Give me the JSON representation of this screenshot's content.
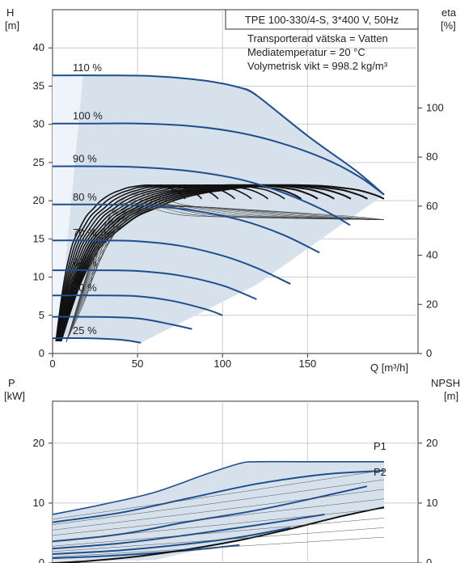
{
  "top_chart": {
    "pump_title": "TPE 100-330/4-S, 3*400 V, 50Hz",
    "info_lines": [
      "Transporterad vätska = Vatten",
      "Mediatemperatur = 20 °C",
      "Volymetrisk vikt = 998.2 kg/m³"
    ],
    "y_left_label": "H",
    "y_left_unit": "[m]",
    "y_right_label": "eta",
    "y_right_unit": "[%]",
    "x_label": "Q [m³/h]"
  },
  "bottom_chart": {
    "y_left_label": "P",
    "y_left_unit": "[kW]",
    "y_right_label": "NPSH",
    "y_right_unit": "[m]",
    "p1_label": "P1",
    "p2_label": "P2"
  },
  "colors": {
    "speed_curve": "#1f4e8c",
    "envelope_fill": "#d6e1ec",
    "light_fill": "#eef4fa",
    "eff_curve": "#111111",
    "p_label": "#2b5d9b",
    "axis": "#333333",
    "grid": "#cccccc"
  },
  "chart_data": [
    {
      "type": "line",
      "title": "TPE 100-330/4-S, 3*400 V, 50Hz",
      "xlabel": "Q [m³/h]",
      "ylabel": "H [m]",
      "y2label": "eta [%]",
      "xlim": [
        0,
        215
      ],
      "ylim": [
        0,
        45
      ],
      "y2lim": [
        0,
        140
      ],
      "xticks": [
        0,
        50,
        100,
        150
      ],
      "yticks": [
        0,
        5,
        10,
        15,
        20,
        25,
        30,
        35,
        40
      ],
      "y2ticks": [
        0,
        20,
        40,
        60,
        80,
        100
      ],
      "grid": true,
      "head_series": [
        {
          "name": "110 %",
          "label_y": 36.4,
          "points": [
            [
              0,
              36.4
            ],
            [
              30,
              36.4
            ],
            [
              60,
              36.3
            ],
            [
              90,
              35.7
            ],
            [
              112,
              34.7
            ],
            [
              120,
              33.8
            ]
          ]
        },
        {
          "name": "100 %",
          "label_y": 30.1,
          "points": [
            [
              0,
              30.1
            ],
            [
              25,
              30.1
            ],
            [
              50,
              30.1
            ],
            [
              80,
              29.8
            ],
            [
              110,
              28.9
            ],
            [
              135,
              27.5
            ],
            [
              160,
              25.5
            ],
            [
              180,
              23.2
            ],
            [
              195,
              20.8
            ]
          ]
        },
        {
          "name": "90 %",
          "label_y": 24.5,
          "points": [
            [
              0,
              24.5
            ],
            [
              25,
              24.5
            ],
            [
              50,
              24.4
            ],
            [
              80,
              23.9
            ],
            [
              110,
              22.8
            ],
            [
              135,
              21.1
            ],
            [
              160,
              18.7
            ],
            [
              175,
              16.8
            ]
          ]
        },
        {
          "name": "80 %",
          "label_y": 19.5,
          "points": [
            [
              0,
              19.5
            ],
            [
              25,
              19.5
            ],
            [
              50,
              19.4
            ],
            [
              80,
              18.8
            ],
            [
              110,
              17.5
            ],
            [
              135,
              15.6
            ],
            [
              157,
              13.2
            ]
          ]
        },
        {
          "name": "70 %",
          "label_y": 14.8,
          "points": [
            [
              0,
              14.8
            ],
            [
              25,
              14.8
            ],
            [
              50,
              14.7
            ],
            [
              75,
              14.1
            ],
            [
              100,
              12.8
            ],
            [
              120,
              11.2
            ],
            [
              140,
              9.1
            ]
          ]
        },
        {
          "name": "60 %",
          "label_y": 10.9,
          "points": [
            [
              0,
              10.9
            ],
            [
              25,
              10.9
            ],
            [
              50,
              10.8
            ],
            [
              75,
              10.2
            ],
            [
              100,
              8.9
            ],
            [
              120,
              7.1
            ]
          ]
        },
        {
          "name": "50 %",
          "label_y": 7.6,
          "points": [
            [
              0,
              7.6
            ],
            [
              25,
              7.6
            ],
            [
              50,
              7.5
            ],
            [
              70,
              6.9
            ],
            [
              90,
              5.8
            ],
            [
              100,
              5.0
            ]
          ]
        },
        {
          "name": "",
          "label_y": 4.8,
          "points": [
            [
              0,
              4.8
            ],
            [
              25,
              4.8
            ],
            [
              50,
              4.6
            ],
            [
              70,
              3.8
            ],
            [
              82,
              3.2
            ]
          ]
        },
        {
          "name": "25 %",
          "label_y": 2.0,
          "points": [
            [
              0,
              2.0
            ],
            [
              20,
              2.0
            ],
            [
              40,
              1.8
            ],
            [
              52,
              1.4
            ]
          ]
        }
      ],
      "efficiency_series": [
        {
          "name": "eta",
          "axis": "y2",
          "points": [
            [
              5,
              5
            ],
            [
              10,
              16
            ],
            [
              15,
              26
            ],
            [
              20,
              34
            ],
            [
              25,
              40
            ],
            [
              30,
              45
            ],
            [
              40,
              51
            ],
            [
              50,
              56
            ],
            [
              60,
              59
            ],
            [
              70,
              62
            ],
            [
              80,
              64
            ],
            [
              90,
              65.5
            ],
            [
              100,
              66.5
            ],
            [
              110,
              67.5
            ],
            [
              120,
              68
            ],
            [
              130,
              68.4
            ],
            [
              140,
              68.6
            ],
            [
              150,
              68.5
            ],
            [
              160,
              68.2
            ],
            [
              170,
              67.5
            ],
            [
              180,
              66.5
            ],
            [
              190,
              64.5
            ],
            [
              195,
              63
            ]
          ]
        }
      ]
    },
    {
      "type": "line",
      "xlabel": "",
      "ylabel": "P [kW]",
      "y2label": "NPSH [m]",
      "xlim": [
        0,
        215
      ],
      "ylim": [
        0,
        27
      ],
      "y2lim": [
        0,
        27
      ],
      "yticks": [
        0,
        10,
        20
      ],
      "y2ticks": [
        0,
        10,
        20
      ],
      "grid": true,
      "series": [
        {
          "name": "P1",
          "points": [
            [
              0,
              8.1
            ],
            [
              30,
              9.8
            ],
            [
              60,
              11.8
            ],
            [
              90,
              14.8
            ],
            [
              110,
              16.6
            ],
            [
              120,
              16.9
            ],
            [
              150,
              16.9
            ],
            [
              195,
              16.9
            ]
          ]
        },
        {
          "name": "P2",
          "points": [
            [
              0,
              6.8
            ],
            [
              40,
              8.4
            ],
            [
              80,
              10.8
            ],
            [
              120,
              13.2
            ],
            [
              160,
              14.8
            ],
            [
              195,
              15.4
            ]
          ]
        },
        {
          "name": "",
          "points": [
            [
              0,
              3.6
            ],
            [
              40,
              4.8
            ],
            [
              80,
              6.9
            ],
            [
              120,
              8.8
            ],
            [
              155,
              10.9
            ],
            [
              185,
              12.8
            ]
          ]
        },
        {
          "name": "",
          "points": [
            [
              0,
              2.4
            ],
            [
              40,
              3.3
            ],
            [
              80,
              4.7
            ],
            [
              120,
              6.3
            ],
            [
              160,
              8.1
            ]
          ]
        },
        {
          "name": "",
          "points": [
            [
              0,
              1.5
            ],
            [
              40,
              2.1
            ],
            [
              80,
              3.2
            ],
            [
              110,
              4.3
            ],
            [
              140,
              5.9
            ]
          ]
        },
        {
          "name": "",
          "points": [
            [
              0,
              0.8
            ],
            [
              40,
              1.3
            ],
            [
              80,
              2.1
            ],
            [
              110,
              3.0
            ]
          ]
        },
        {
          "name": "NPSH",
          "axis": "y2",
          "points": [
            [
              0,
              0
            ],
            [
              20,
              0.3
            ],
            [
              50,
              1.1
            ],
            [
              80,
              2.3
            ],
            [
              110,
              3.8
            ],
            [
              140,
              5.7
            ],
            [
              170,
              7.8
            ],
            [
              195,
              9.3
            ]
          ]
        }
      ]
    }
  ]
}
